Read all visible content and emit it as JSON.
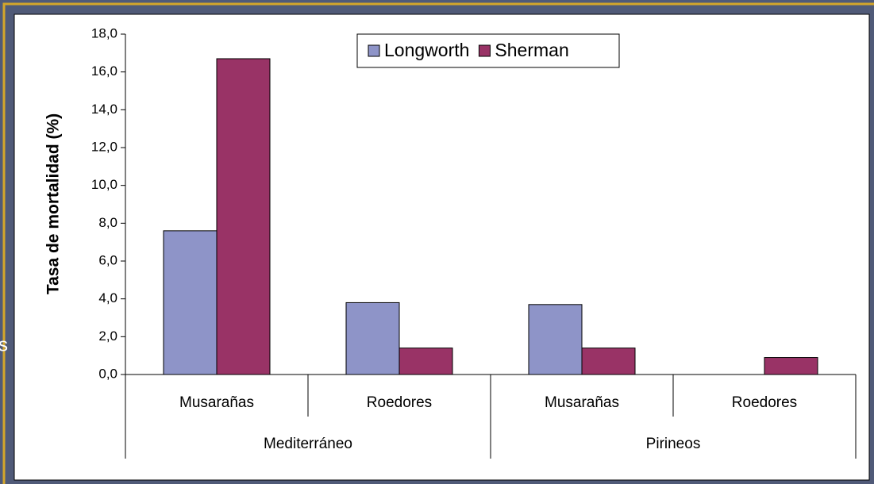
{
  "side_text": "s",
  "chart_data": {
    "type": "bar",
    "y_label": "Tasa de mortalidad (%)",
    "categories": [
      "Musarañas",
      "Roedores",
      "Musarañas",
      "Roedores"
    ],
    "groups": [
      "Mediterráneo",
      "Pirineos"
    ],
    "series": [
      {
        "name": "Longworth",
        "color": "#8e94c8",
        "values": [
          7.6,
          3.8,
          3.7,
          0
        ]
      },
      {
        "name": "Sherman",
        "color": "#993366",
        "values": [
          16.7,
          1.4,
          1.4,
          0.9
        ]
      }
    ],
    "ylim": [
      0,
      18
    ],
    "yticks": [
      {
        "value": 0,
        "label": "0,0"
      },
      {
        "value": 2,
        "label": "2,0"
      },
      {
        "value": 4,
        "label": "4,0"
      },
      {
        "value": 6,
        "label": "6,0"
      },
      {
        "value": 8,
        "label": "8,0"
      },
      {
        "value": 10,
        "label": "10,0"
      },
      {
        "value": 12,
        "label": "12,0"
      },
      {
        "value": 14,
        "label": "14,0"
      },
      {
        "value": 16,
        "label": "16,0"
      },
      {
        "value": 18,
        "label": "18,0"
      }
    ],
    "legend": "top"
  }
}
